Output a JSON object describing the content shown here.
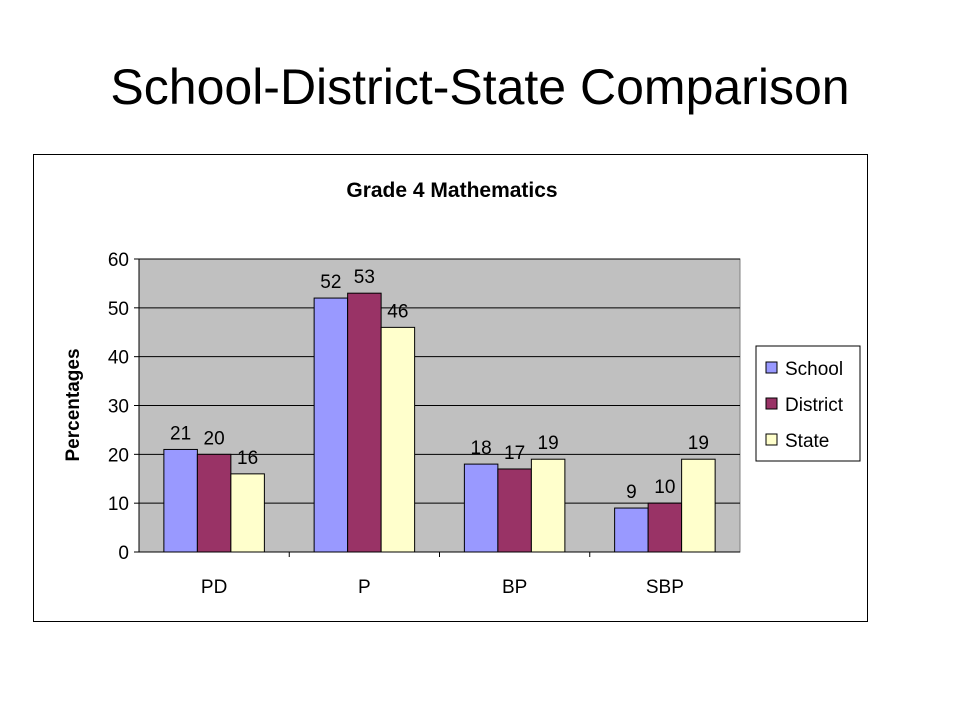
{
  "slide": {
    "title": "School-District-State Comparison"
  },
  "chart_data": {
    "type": "bar",
    "title": "Grade 4 Mathematics",
    "xlabel": "",
    "ylabel": "Percentages",
    "categories": [
      "PD",
      "P",
      "BP",
      "SBP"
    ],
    "series": [
      {
        "name": "School",
        "values": [
          21,
          52,
          18,
          9
        ],
        "color": "#9999ff"
      },
      {
        "name": "District",
        "values": [
          20,
          53,
          17,
          10
        ],
        "color": "#993366"
      },
      {
        "name": "State",
        "values": [
          16,
          46,
          19,
          19
        ],
        "color": "#ffffcc"
      }
    ],
    "ylim": [
      0,
      60
    ],
    "yticks": [
      0,
      10,
      20,
      30,
      40,
      50,
      60
    ],
    "grid": true,
    "legend": "right",
    "plot_background": "#c0c0c0",
    "data_labels": true
  }
}
